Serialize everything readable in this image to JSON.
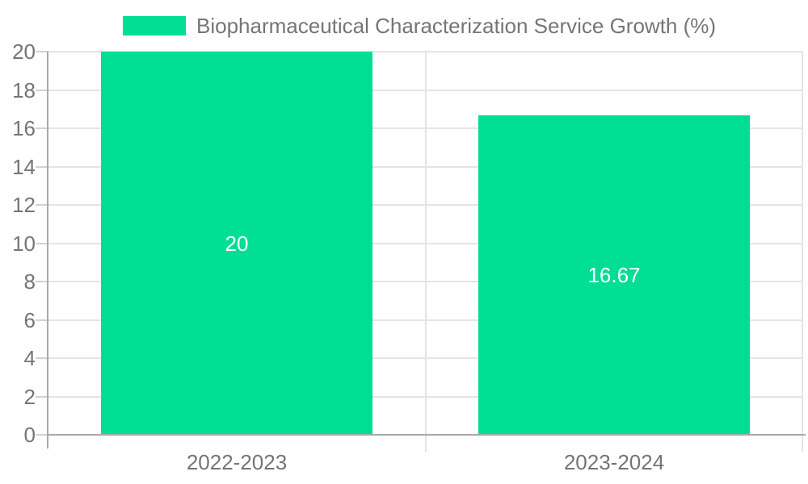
{
  "chart_data": {
    "type": "bar",
    "series_name": "Biopharmaceutical Characterization Service Growth (%)",
    "categories": [
      "2022-2023",
      "2023-2024"
    ],
    "values": [
      20,
      16.67
    ],
    "value_labels": [
      "20",
      "16.67"
    ],
    "ylim": [
      0,
      20
    ],
    "ytick_step": 2,
    "ytick_labels": [
      "0",
      "2",
      "4",
      "6",
      "8",
      "10",
      "12",
      "14",
      "16",
      "18",
      "20"
    ],
    "grid": true,
    "legend_position": "top",
    "value_label_position": "center-of-bar",
    "colors": {
      "bar": "#00DE94",
      "text": "#757575",
      "value_label": "#FFFFFF",
      "grid": "#E4E4E4",
      "axis": "#A9A9A9",
      "tick": "#D2D2D2",
      "background": "#FFFFFF"
    }
  }
}
